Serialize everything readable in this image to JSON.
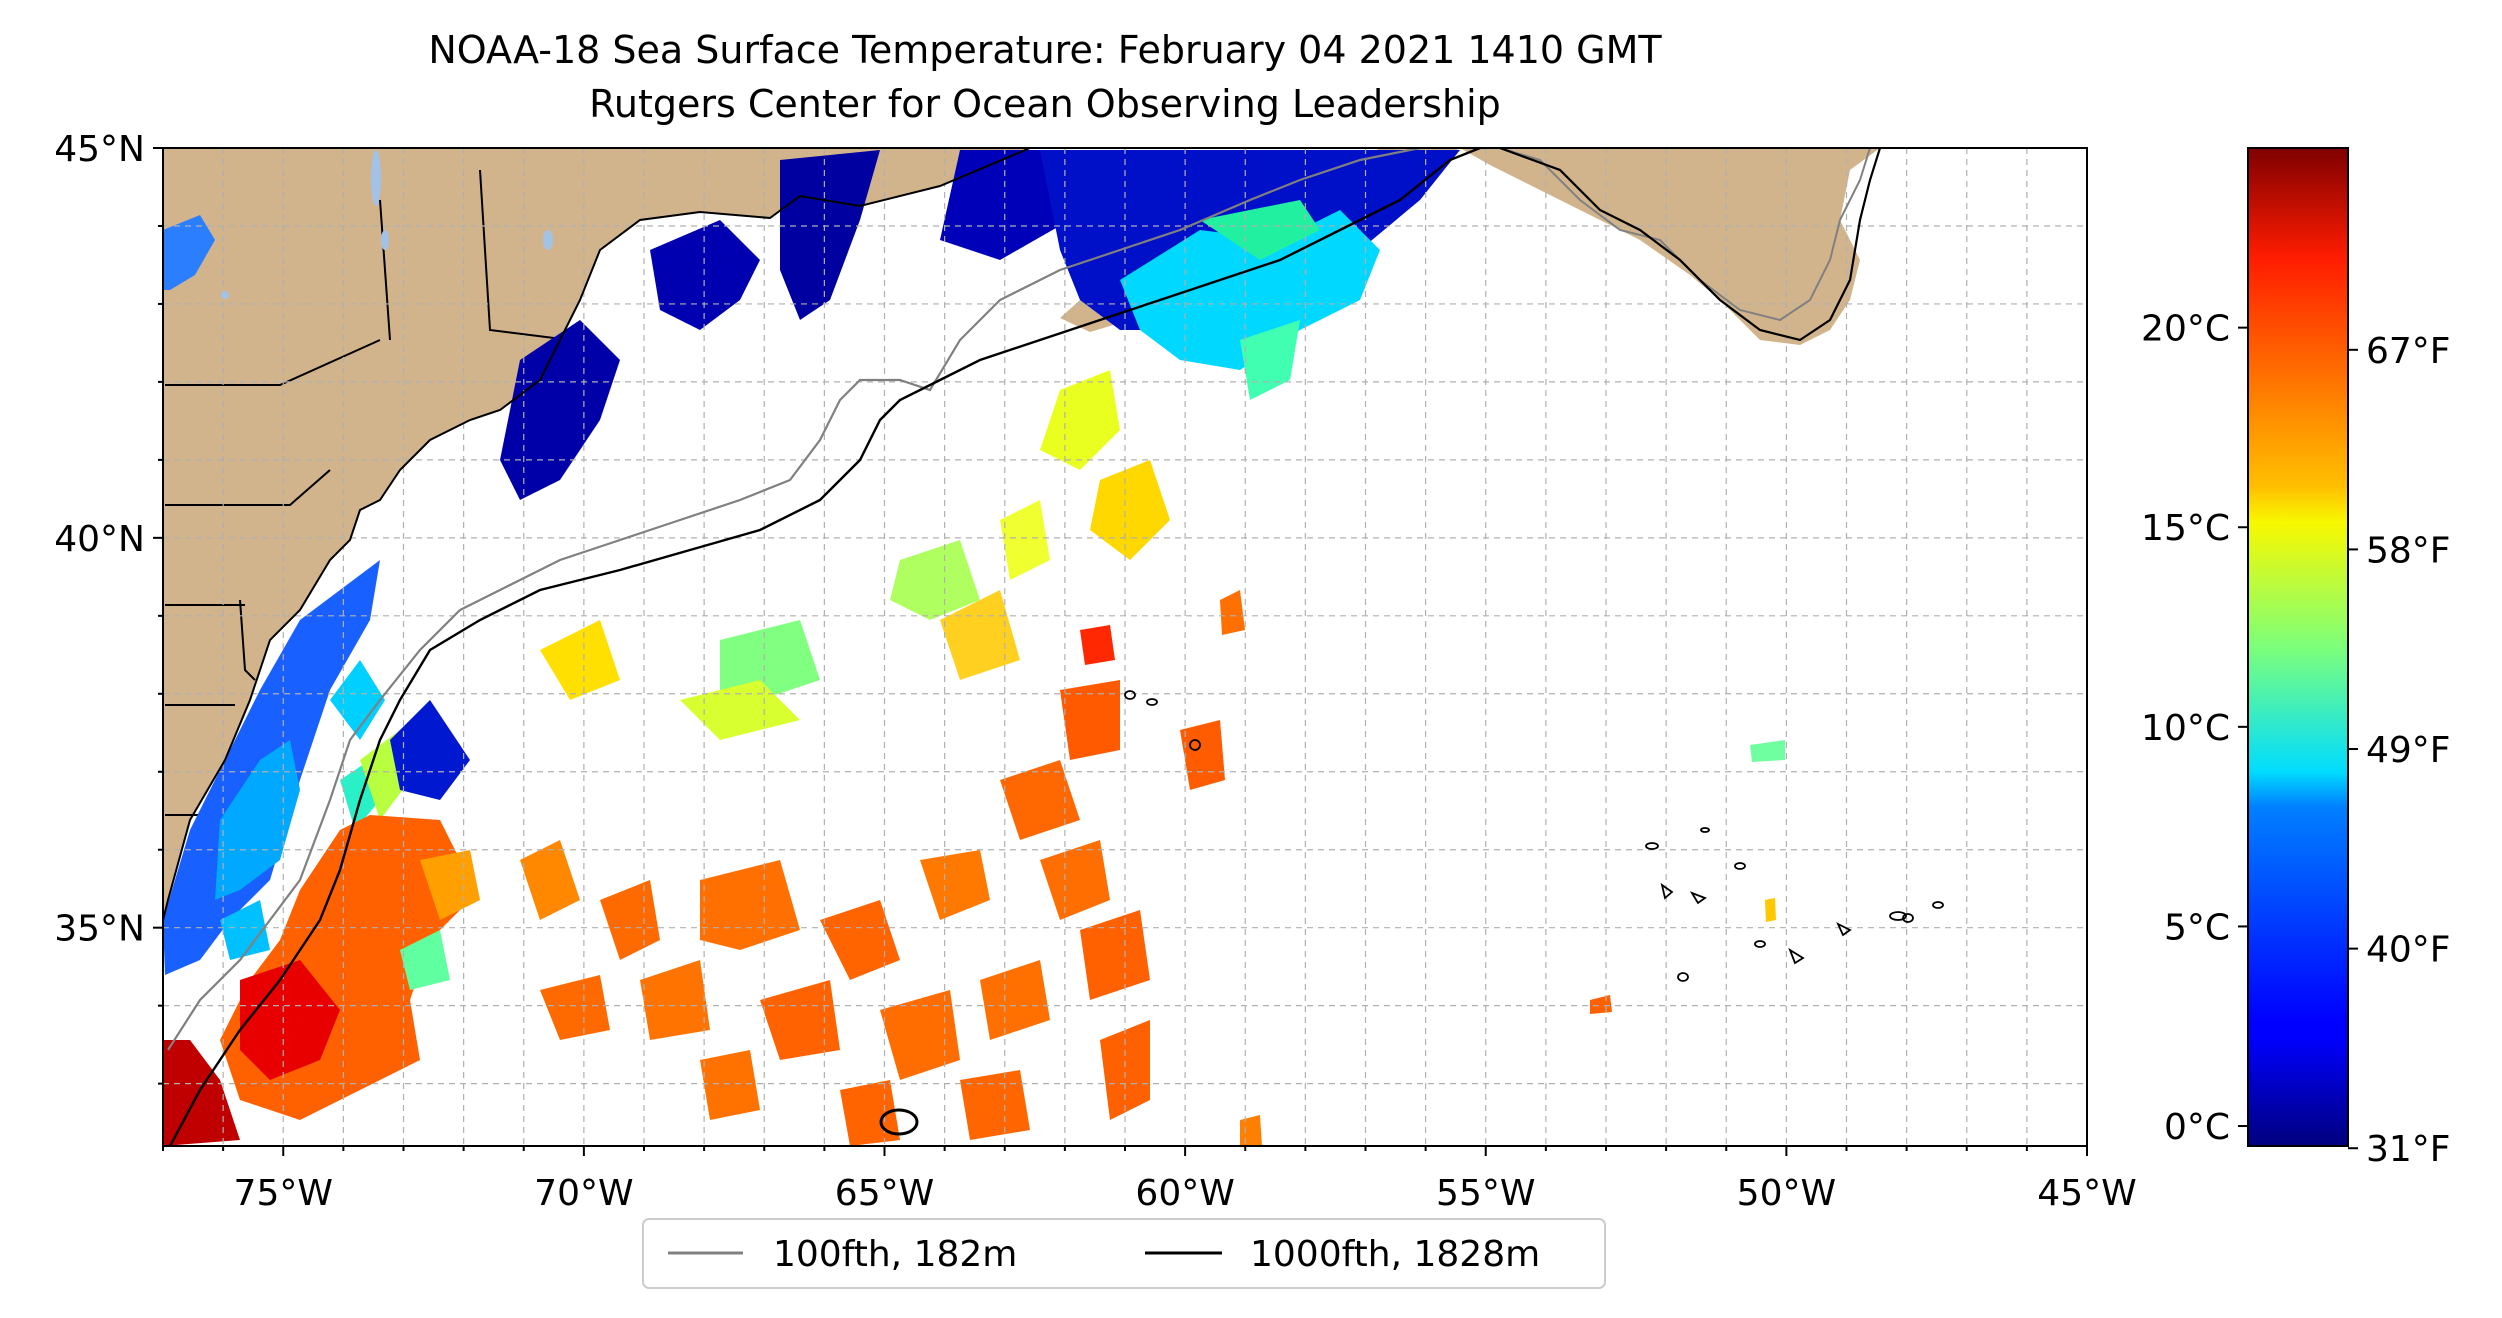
{
  "title": "NOAA-18 Sea Surface Temperature: February 04 2021 1410 GMT",
  "subtitle": "Rutgers Center for Ocean Observing Leadership",
  "map": {
    "lon_range": [
      -77,
      -45
    ],
    "lat_range": [
      32.2,
      45
    ],
    "lon_ticks": [
      "75°W",
      "70°W",
      "65°W",
      "60°W",
      "55°W",
      "50°W",
      "45°W"
    ],
    "lat_ticks": [
      "35°N",
      "40°N",
      "45°N"
    ],
    "gridlines": true,
    "land_color": "#d2b48c"
  },
  "legend": {
    "placement": "bottom-center",
    "items": [
      {
        "label": "100fth, 182m",
        "color": "#808080"
      },
      {
        "label": "1000fth, 1828m",
        "color": "#000000"
      }
    ]
  },
  "colorbar": {
    "colormap": "jet",
    "range_c": [
      -0.5,
      24.5
    ],
    "celsius_ticks": [
      "0°C",
      "5°C",
      "10°C",
      "15°C",
      "20°C"
    ],
    "fahrenheit_ticks": [
      "31°F",
      "40°F",
      "49°F",
      "58°F",
      "67°F"
    ]
  }
}
